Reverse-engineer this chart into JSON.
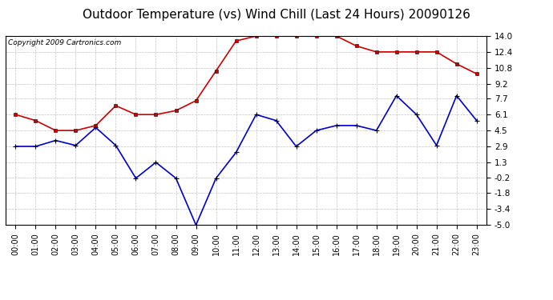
{
  "title": "Outdoor Temperature (vs) Wind Chill (Last 24 Hours) 20090126",
  "copyright": "Copyright 2009 Cartronics.com",
  "hours": [
    "00:00",
    "01:00",
    "02:00",
    "03:00",
    "04:00",
    "05:00",
    "06:00",
    "07:00",
    "08:00",
    "09:00",
    "10:00",
    "11:00",
    "12:00",
    "13:00",
    "14:00",
    "15:00",
    "16:00",
    "17:00",
    "18:00",
    "19:00",
    "20:00",
    "21:00",
    "22:00",
    "23:00"
  ],
  "temp": [
    6.1,
    5.5,
    4.5,
    4.5,
    5.0,
    7.0,
    6.1,
    6.1,
    6.5,
    7.5,
    10.5,
    13.5,
    14.0,
    14.0,
    14.0,
    14.0,
    14.0,
    13.0,
    12.4,
    12.4,
    12.4,
    12.4,
    11.2,
    10.2
  ],
  "wind_chill": [
    2.9,
    2.9,
    3.5,
    3.0,
    4.8,
    3.0,
    -0.3,
    1.3,
    -0.3,
    -5.0,
    -0.3,
    2.3,
    6.1,
    5.5,
    2.9,
    4.5,
    5.0,
    5.0,
    4.5,
    8.0,
    6.1,
    3.0,
    8.0,
    5.5
  ],
  "temp_color": "#cc0000",
  "wind_chill_color": "#0000cc",
  "yticks": [
    14.0,
    12.4,
    10.8,
    9.2,
    7.7,
    6.1,
    4.5,
    2.9,
    1.3,
    -0.2,
    -1.8,
    -3.4,
    -5.0
  ],
  "ymin": -5.0,
  "ymax": 14.0,
  "background_color": "#ffffff",
  "plot_background": "#ffffff",
  "grid_color": "#aaaaaa",
  "title_fontsize": 11,
  "copyright_fontsize": 6.5
}
